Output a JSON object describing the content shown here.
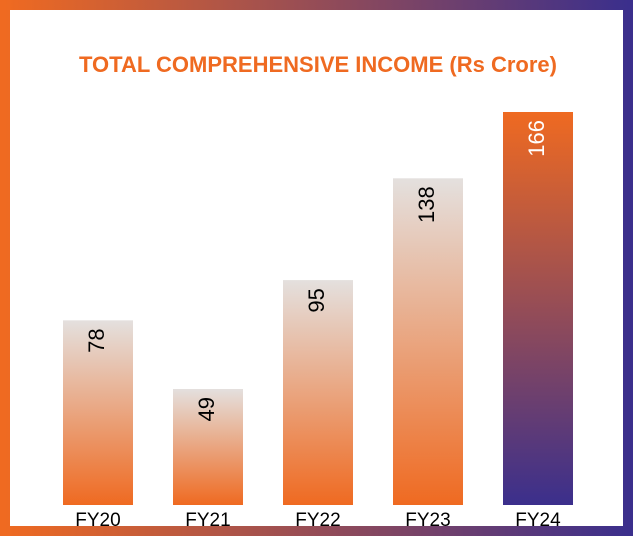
{
  "chart_data": {
    "type": "bar",
    "title": "TOTAL COMPREHENSIVE  INCOME  (Rs Crore)",
    "categories": [
      "FY20",
      "FY21",
      "FY22",
      "FY23",
      "FY24"
    ],
    "values": [
      78,
      49,
      95,
      138,
      166
    ],
    "colors": [
      [
        "#e4e0de",
        "#ef6a21"
      ],
      [
        "#e4e0de",
        "#ef6a21"
      ],
      [
        "#e4e0de",
        "#ef6a21"
      ],
      [
        "#e4e0de",
        "#ef6a21"
      ],
      [
        "#ef6a21",
        "#3b2f8c"
      ]
    ],
    "label_colors": [
      "#000000",
      "#000000",
      "#000000",
      "#000000",
      "#ffffff"
    ]
  }
}
